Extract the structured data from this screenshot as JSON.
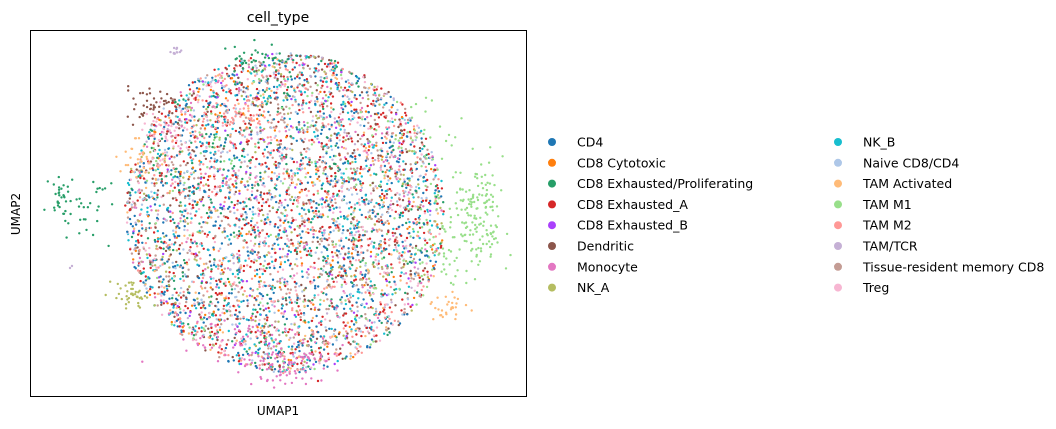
{
  "chart_data": {
    "type": "scatter",
    "title": "cell_type",
    "xlabel": "UMAP1",
    "ylabel": "UMAP2",
    "xticks": [],
    "yticks": [],
    "grid": false,
    "legend_position": "right, two columns, outside plot",
    "series": [
      {
        "name": "CD4",
        "color": "#1f77b4"
      },
      {
        "name": "CD8 Cytotoxic",
        "color": "#ff7f0e"
      },
      {
        "name": "CD8 Exhausted/Proliferating",
        "color": "#279e68"
      },
      {
        "name": "CD8 Exhausted_A",
        "color": "#d62728"
      },
      {
        "name": "CD8 Exhausted_B",
        "color": "#aa40fc"
      },
      {
        "name": "Dendritic",
        "color": "#8c564b"
      },
      {
        "name": "Monocyte",
        "color": "#e377c2"
      },
      {
        "name": "NK_A",
        "color": "#b5bd61"
      },
      {
        "name": "NK_B",
        "color": "#17becf"
      },
      {
        "name": "Naive CD8/CD4",
        "color": "#aec7e8"
      },
      {
        "name": "TAM Activated",
        "color": "#ffbb78"
      },
      {
        "name": "TAM M1",
        "color": "#98df8a"
      },
      {
        "name": "TAM M2",
        "color": "#ff9896"
      },
      {
        "name": "TAM/TCR",
        "color": "#c5b0d5"
      },
      {
        "name": "Tissue-resident memory CD8",
        "color": "#c49c94"
      },
      {
        "name": "Treg",
        "color": "#f7b6d2"
      }
    ]
  }
}
